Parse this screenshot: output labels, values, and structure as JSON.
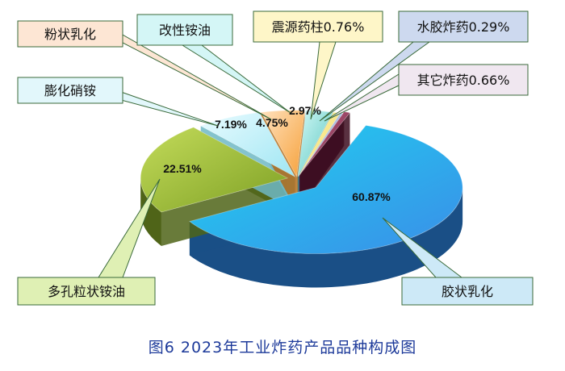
{
  "chart_data": {
    "type": "pie",
    "caption": "图6 2023年工业炸药产品品种构成图",
    "slices": [
      {
        "name": "胶状乳化",
        "value": 60.87,
        "label": "60.87%",
        "colors": [
          "#1fd3f0",
          "#3a8ee8",
          "#1a4f86"
        ]
      },
      {
        "name": "多孔粒状铵油",
        "value": 22.51,
        "label": "22.51%",
        "colors": [
          "#c3db5a",
          "#7ea024",
          "#4f6418"
        ]
      },
      {
        "name": "膨化硝铵",
        "value": 7.19,
        "label": "7.19%",
        "colors": [
          "#e9fbff",
          "#9fe6f3",
          "#6fb9c4"
        ]
      },
      {
        "name": "粉状乳化",
        "value": 4.75,
        "label": "4.75%",
        "colors": [
          "#ffe1bd",
          "#f6a13a",
          "#b06a18"
        ]
      },
      {
        "name": "改性铵油",
        "value": 2.97,
        "label": "2.97%",
        "colors": [
          "#d2f8f5",
          "#56c5c0",
          "#2f8a86"
        ]
      },
      {
        "name": "震源药柱",
        "value": 0.76,
        "label": "震源药柱0.76%",
        "colors": [
          "#fff8c8",
          "#f1d64c",
          "#a88a18"
        ]
      },
      {
        "name": "水胶炸药",
        "value": 0.29,
        "label": "水胶炸药0.29%",
        "colors": [
          "#d6e2f6",
          "#7f9ccc",
          "#47608c"
        ]
      },
      {
        "name": "其它炸药",
        "value": 0.66,
        "label": "其它炸药0.66%",
        "colors": [
          "#c46a8c",
          "#6f1e3c",
          "#3d0d20"
        ]
      }
    ]
  }
}
